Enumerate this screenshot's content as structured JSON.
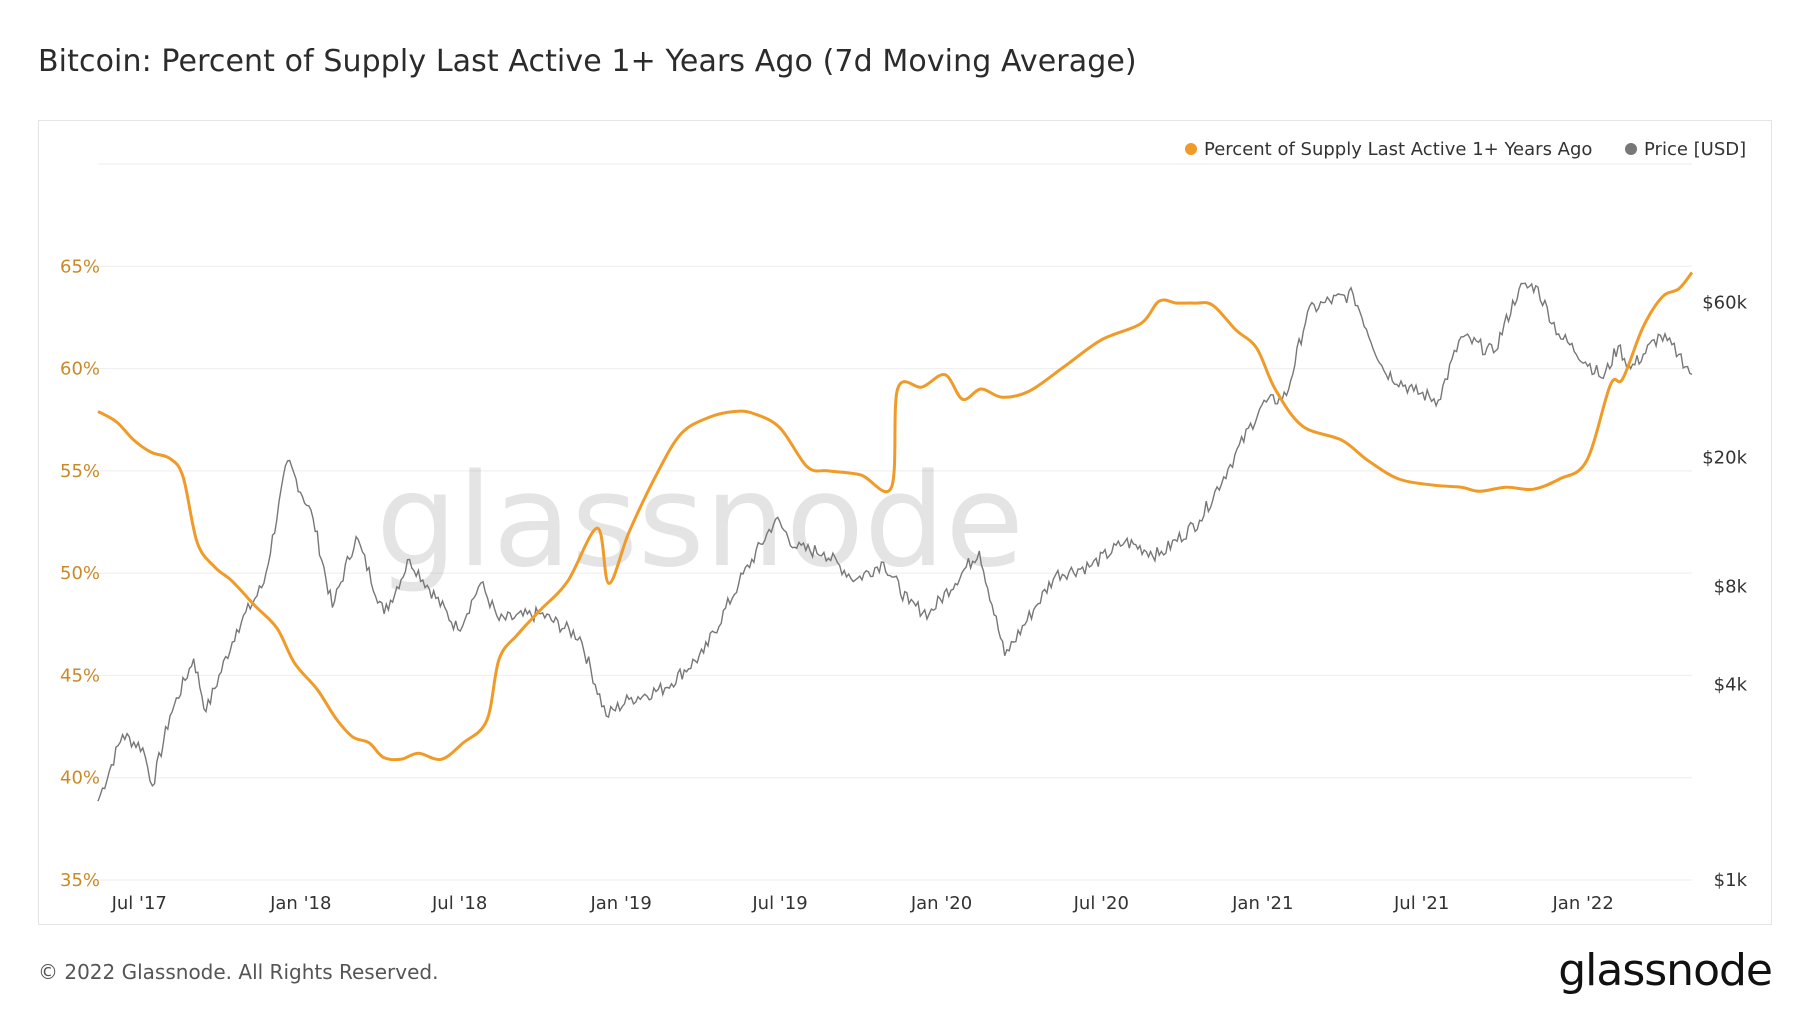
{
  "title": "Bitcoin: Percent of Supply Last Active 1+ Years Ago (7d Moving Average)",
  "footer": "© 2022 Glassnode. All Rights Reserved.",
  "brand": "glassnode",
  "watermark": "glassnode",
  "colors": {
    "supply": "#f09a28",
    "price": "#777777",
    "left_axis": "#c98a26",
    "grid": "#eeeeee"
  },
  "chart_data": {
    "type": "line",
    "title": "Bitcoin: Percent of Supply Last Active 1+ Years Ago (7d Moving Average)",
    "x_ticks": [
      "Jul '17",
      "Jan '18",
      "Jul '18",
      "Jan '19",
      "Jul '19",
      "Jan '20",
      "Jul '20",
      "Jan '21",
      "Jul '21",
      "Jan '22"
    ],
    "x_range": [
      "2017-05-15",
      "2022-05-05"
    ],
    "left_axis": {
      "label": "Percent of Supply Last Active 1+ Years Ago",
      "ticks": [
        "35%",
        "40%",
        "45%",
        "50%",
        "55%",
        "60%",
        "65%"
      ],
      "range": [
        35,
        70
      ]
    },
    "right_axis": {
      "label": "Price [USD]",
      "scale": "log",
      "ticks": [
        "$1k",
        "$4k",
        "$8k",
        "$20k",
        "$60k"
      ],
      "tick_values": [
        1000,
        4000,
        8000,
        20000,
        60000
      ],
      "range": [
        1000,
        160000
      ]
    },
    "legend": [
      {
        "name": "Percent of Supply Last Active 1+ Years Ago",
        "color": "#f09a28"
      },
      {
        "name": "Price [USD]",
        "color": "#777777"
      }
    ],
    "series": [
      {
        "name": "Percent of Supply Last Active 1+ Years Ago",
        "axis": "left",
        "points": [
          [
            "2017-05-15",
            57.9
          ],
          [
            "2017-06-05",
            57.4
          ],
          [
            "2017-06-25",
            56.5
          ],
          [
            "2017-07-15",
            55.9
          ],
          [
            "2017-08-05",
            55.6
          ],
          [
            "2017-08-20",
            54.7
          ],
          [
            "2017-09-05",
            51.5
          ],
          [
            "2017-09-25",
            50.3
          ],
          [
            "2017-10-15",
            49.6
          ],
          [
            "2017-11-10",
            48.4
          ],
          [
            "2017-12-05",
            47.3
          ],
          [
            "2017-12-25",
            45.6
          ],
          [
            "2018-01-20",
            44.3
          ],
          [
            "2018-02-10",
            42.9
          ],
          [
            "2018-03-01",
            42.0
          ],
          [
            "2018-03-20",
            41.7
          ],
          [
            "2018-04-05",
            41.0
          ],
          [
            "2018-04-25",
            40.9
          ],
          [
            "2018-05-15",
            41.2
          ],
          [
            "2018-06-10",
            40.9
          ],
          [
            "2018-07-05",
            41.7
          ],
          [
            "2018-08-01",
            42.8
          ],
          [
            "2018-08-15",
            45.8
          ],
          [
            "2018-09-05",
            47.0
          ],
          [
            "2018-10-01",
            48.2
          ],
          [
            "2018-11-01",
            49.6
          ],
          [
            "2018-12-05",
            52.2
          ],
          [
            "2018-12-18",
            49.5
          ],
          [
            "2019-01-10",
            52.0
          ],
          [
            "2019-02-10",
            54.8
          ],
          [
            "2019-03-10",
            56.8
          ],
          [
            "2019-04-10",
            57.6
          ],
          [
            "2019-05-10",
            57.9
          ],
          [
            "2019-06-01",
            57.8
          ],
          [
            "2019-07-01",
            57.1
          ],
          [
            "2019-08-01",
            55.2
          ],
          [
            "2019-08-25",
            55.0
          ],
          [
            "2019-10-01",
            54.8
          ],
          [
            "2019-11-05",
            54.2
          ],
          [
            "2019-11-12",
            59.0
          ],
          [
            "2019-12-10",
            59.1
          ],
          [
            "2020-01-05",
            59.7
          ],
          [
            "2020-01-25",
            58.5
          ],
          [
            "2020-02-15",
            59.0
          ],
          [
            "2020-03-10",
            58.6
          ],
          [
            "2020-04-10",
            58.9
          ],
          [
            "2020-05-20",
            60.1
          ],
          [
            "2020-07-01",
            61.4
          ],
          [
            "2020-08-15",
            62.2
          ],
          [
            "2020-09-05",
            63.3
          ],
          [
            "2020-09-25",
            63.2
          ],
          [
            "2020-10-15",
            63.2
          ],
          [
            "2020-11-05",
            63.1
          ],
          [
            "2020-12-01",
            61.9
          ],
          [
            "2020-12-25",
            61.0
          ],
          [
            "2021-01-15",
            59.0
          ],
          [
            "2021-02-15",
            57.2
          ],
          [
            "2021-04-01",
            56.5
          ],
          [
            "2021-05-01",
            55.5
          ],
          [
            "2021-06-05",
            54.6
          ],
          [
            "2021-07-15",
            54.3
          ],
          [
            "2021-08-15",
            54.2
          ],
          [
            "2021-09-05",
            54.0
          ],
          [
            "2021-10-05",
            54.2
          ],
          [
            "2021-11-05",
            54.1
          ],
          [
            "2021-12-05",
            54.6
          ],
          [
            "2022-01-05",
            55.5
          ],
          [
            "2022-02-01",
            59.2
          ],
          [
            "2022-02-15",
            59.5
          ],
          [
            "2022-03-10",
            62.0
          ],
          [
            "2022-04-01",
            63.5
          ],
          [
            "2022-04-20",
            63.9
          ],
          [
            "2022-05-05",
            64.7
          ]
        ]
      },
      {
        "name": "Price [USD]",
        "axis": "right",
        "points": [
          [
            "2017-05-15",
            1750
          ],
          [
            "2017-06-12",
            2800
          ],
          [
            "2017-07-05",
            2550
          ],
          [
            "2017-07-16",
            1950
          ],
          [
            "2017-08-05",
            3200
          ],
          [
            "2017-09-01",
            4800
          ],
          [
            "2017-09-15",
            3300
          ],
          [
            "2017-10-20",
            5900
          ],
          [
            "2017-11-20",
            8200
          ],
          [
            "2017-12-17",
            19500
          ],
          [
            "2018-01-15",
            13000
          ],
          [
            "2018-02-06",
            6900
          ],
          [
            "2018-03-05",
            11400
          ],
          [
            "2018-04-06",
            6600
          ],
          [
            "2018-05-05",
            9700
          ],
          [
            "2018-06-29",
            5900
          ],
          [
            "2018-07-25",
            8200
          ],
          [
            "2018-08-15",
            6300
          ],
          [
            "2018-10-01",
            6600
          ],
          [
            "2018-11-15",
            5600
          ],
          [
            "2018-12-15",
            3200
          ],
          [
            "2019-01-10",
            3600
          ],
          [
            "2019-02-20",
            3900
          ],
          [
            "2019-04-05",
            5000
          ],
          [
            "2019-05-15",
            8200
          ],
          [
            "2019-06-26",
            12900
          ],
          [
            "2019-07-20",
            10500
          ],
          [
            "2019-08-20",
            10200
          ],
          [
            "2019-09-25",
            8400
          ],
          [
            "2019-10-27",
            9500
          ],
          [
            "2019-11-25",
            7100
          ],
          [
            "2019-12-18",
            6600
          ],
          [
            "2020-02-13",
            10300
          ],
          [
            "2020-03-13",
            4900
          ],
          [
            "2020-04-15",
            6800
          ],
          [
            "2020-05-10",
            8700
          ],
          [
            "2020-06-20",
            9300
          ],
          [
            "2020-07-28",
            11000
          ],
          [
            "2020-09-05",
            10000
          ],
          [
            "2020-10-21",
            12800
          ],
          [
            "2020-11-25",
            19000
          ],
          [
            "2020-12-31",
            29000
          ],
          [
            "2021-01-28",
            31000
          ],
          [
            "2021-02-21",
            56000
          ],
          [
            "2021-03-13",
            60000
          ],
          [
            "2021-04-14",
            63500
          ],
          [
            "2021-05-19",
            37000
          ],
          [
            "2021-06-22",
            32000
          ],
          [
            "2021-07-20",
            30000
          ],
          [
            "2021-08-15",
            47000
          ],
          [
            "2021-09-21",
            42000
          ],
          [
            "2021-10-20",
            66000
          ],
          [
            "2021-11-08",
            67500
          ],
          [
            "2021-12-04",
            48000
          ],
          [
            "2022-01-24",
            35000
          ],
          [
            "2022-02-10",
            44000
          ],
          [
            "2022-02-24",
            37500
          ],
          [
            "2022-03-30",
            47500
          ],
          [
            "2022-04-20",
            41500
          ],
          [
            "2022-05-05",
            36000
          ]
        ]
      }
    ]
  }
}
